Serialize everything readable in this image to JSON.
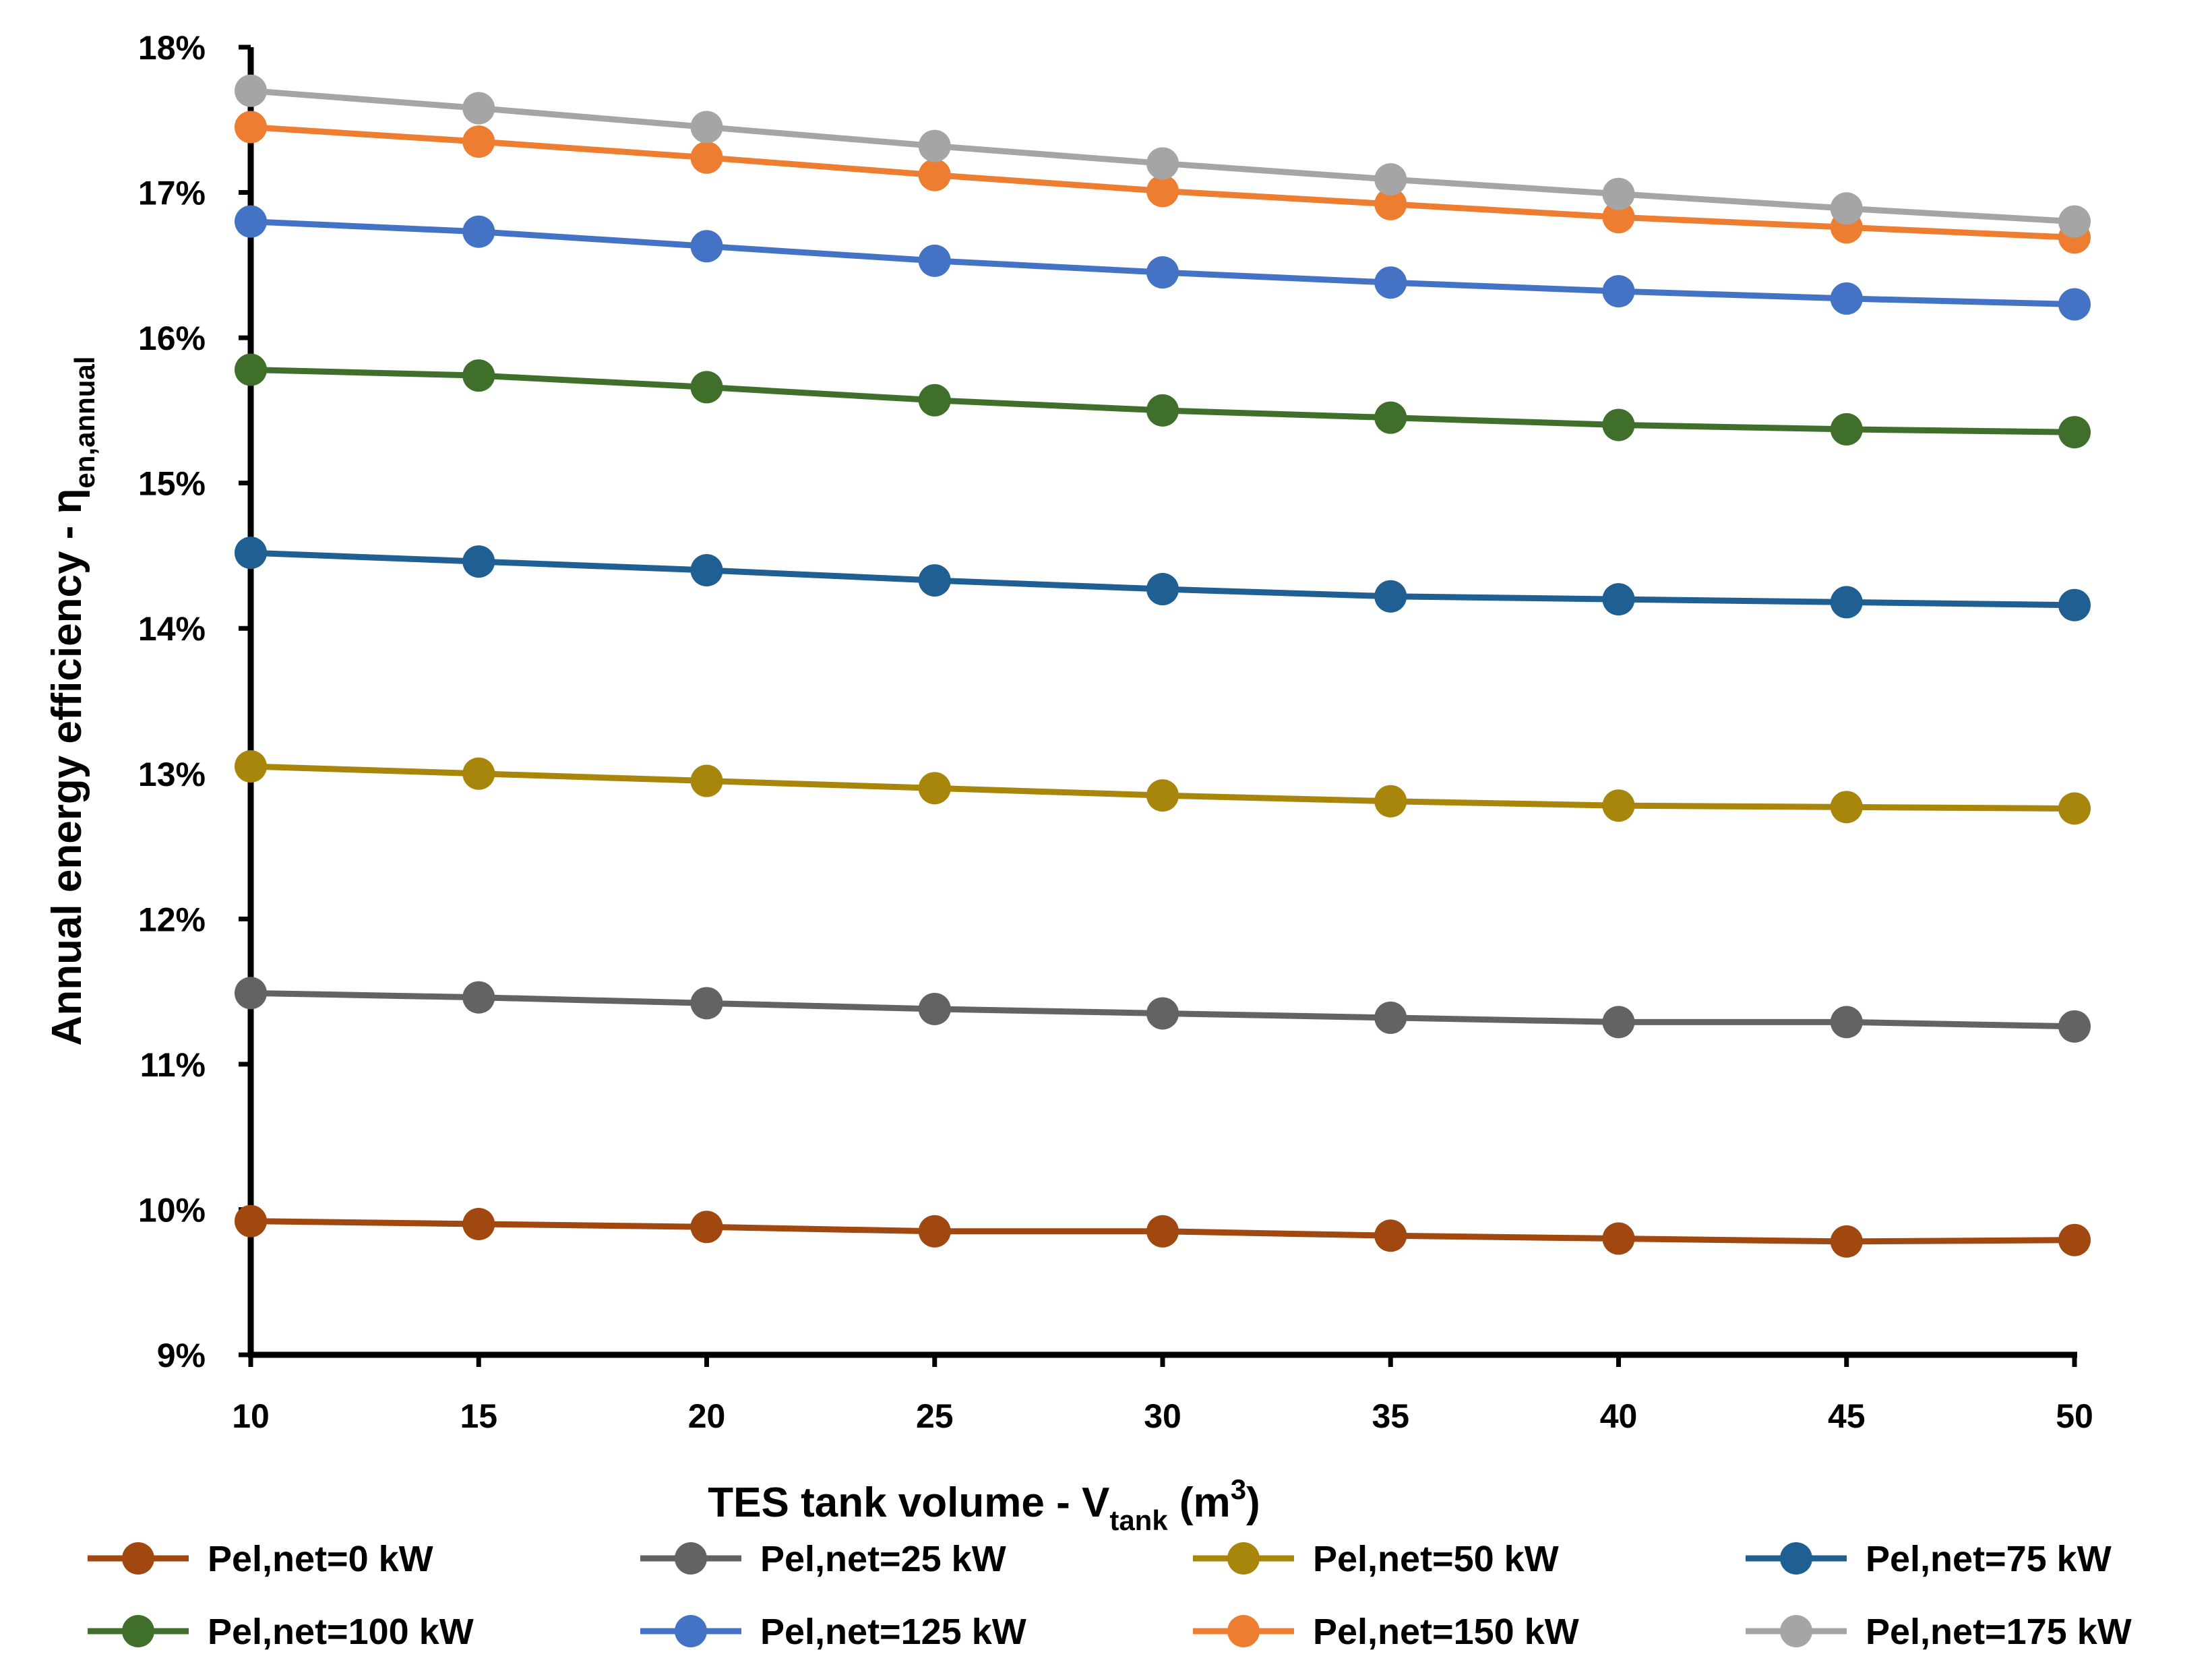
{
  "chart_data": {
    "type": "line",
    "title": "",
    "xlabel": {
      "main": "TES tank volume - V",
      "sub": "tank",
      "unit_open": " (m",
      "sup": "3",
      "unit_close": ")"
    },
    "ylabel": {
      "main": "Annual energy efficiency - η",
      "sub": "en,annual"
    },
    "x": [
      10,
      15,
      20,
      25,
      30,
      35,
      40,
      45,
      50
    ],
    "xlim": [
      10,
      50
    ],
    "ylim": [
      9,
      18
    ],
    "y_unit": "%",
    "x_tick_labels": [
      "10",
      "15",
      "20",
      "25",
      "30",
      "35",
      "40",
      "45",
      "50"
    ],
    "y_tick_labels": [
      "9%",
      "10%",
      "11%",
      "12%",
      "13%",
      "14%",
      "15%",
      "16%",
      "17%",
      "18%"
    ],
    "grid": false,
    "legend_position": "bottom",
    "series": [
      {
        "name": "Pel,net=0 kW",
        "color": "#a0480f",
        "values": [
          9.92,
          9.9,
          9.88,
          9.85,
          9.85,
          9.82,
          9.8,
          9.78,
          9.79
        ]
      },
      {
        "name": "Pel,net=25 kW",
        "color": "#636363",
        "values": [
          11.49,
          11.46,
          11.42,
          11.38,
          11.35,
          11.32,
          11.29,
          11.29,
          11.26
        ]
      },
      {
        "name": "Pel,net=50 kW",
        "color": "#a8860b",
        "values": [
          13.05,
          13.0,
          12.95,
          12.9,
          12.85,
          12.81,
          12.78,
          12.77,
          12.76
        ]
      },
      {
        "name": "Pel,net=75 kW",
        "color": "#1f5f91",
        "values": [
          14.52,
          14.46,
          14.4,
          14.33,
          14.27,
          14.22,
          14.2,
          14.18,
          14.16
        ]
      },
      {
        "name": "Pel,net=100 kW",
        "color": "#3f6f2a",
        "values": [
          15.78,
          15.74,
          15.66,
          15.57,
          15.5,
          15.45,
          15.4,
          15.37,
          15.35
        ]
      },
      {
        "name": "Pel,net=125 kW",
        "color": "#4472c4",
        "values": [
          16.8,
          16.73,
          16.63,
          16.53,
          16.45,
          16.38,
          16.32,
          16.27,
          16.23
        ]
      },
      {
        "name": "Pel,net=150 kW",
        "color": "#ed7d31",
        "values": [
          17.45,
          17.35,
          17.24,
          17.12,
          17.01,
          16.92,
          16.83,
          16.76,
          16.69
        ]
      },
      {
        "name": "Pel,net=175 kW",
        "color": "#a5a5a5",
        "values": [
          17.7,
          17.58,
          17.45,
          17.32,
          17.2,
          17.09,
          16.99,
          16.89,
          16.8
        ]
      }
    ]
  }
}
